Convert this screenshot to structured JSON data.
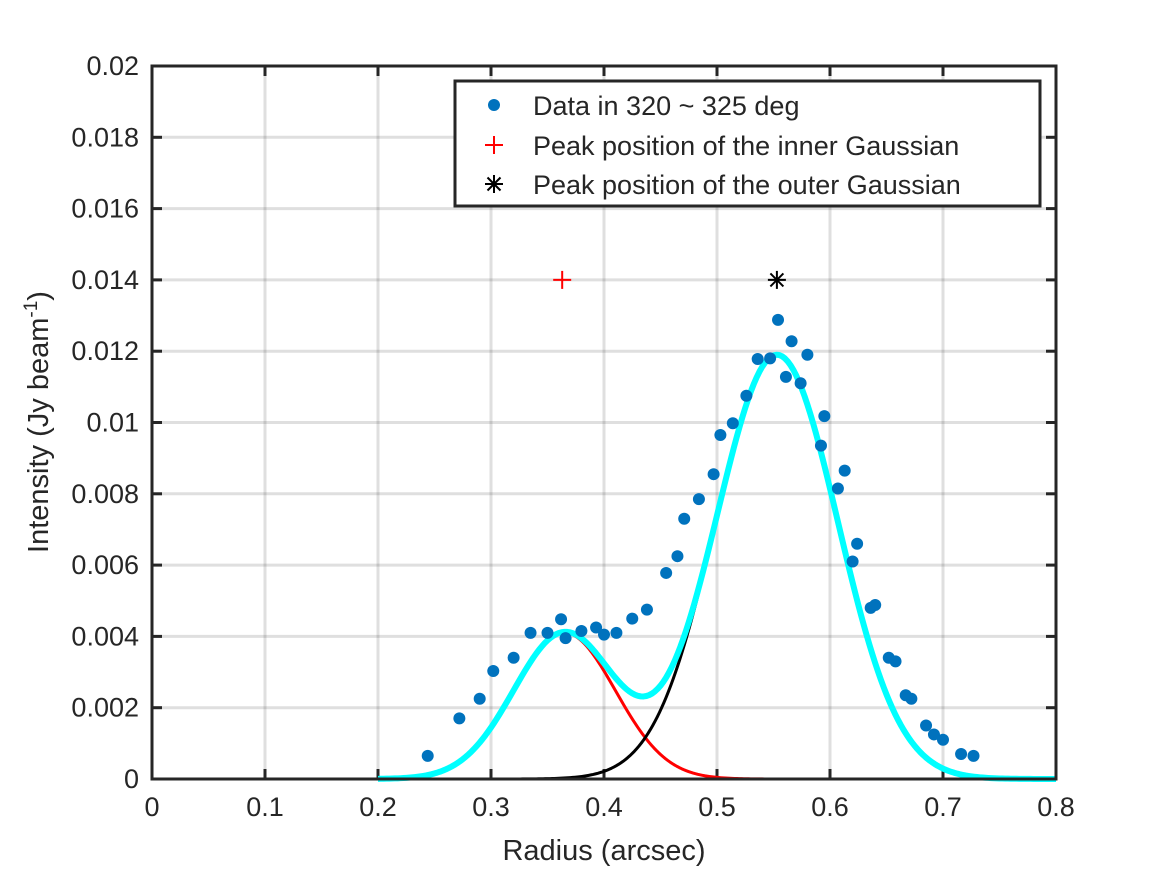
{
  "chart_data": {
    "type": "scatter",
    "title": "",
    "xlabel": "Radius (arcsec)",
    "ylabel": "Intensity (Jy beam",
    "ylabel_sup": "-1",
    "ylabel_close": ")",
    "xlim": [
      0,
      0.8
    ],
    "ylim": [
      0,
      0.02
    ],
    "grid": true,
    "legend_position": "top-right",
    "x_ticks": [
      0,
      0.1,
      0.2,
      0.3,
      0.4,
      0.5,
      0.6,
      0.7,
      0.8
    ],
    "x_tick_labels": [
      "0",
      "0.1",
      "0.2",
      "0.3",
      "0.4",
      "0.5",
      "0.6",
      "0.7",
      "0.8"
    ],
    "y_ticks": [
      0,
      0.002,
      0.004,
      0.006,
      0.008,
      0.01,
      0.012,
      0.014,
      0.016,
      0.018,
      0.02
    ],
    "y_tick_labels": [
      "0",
      "0.002",
      "0.004",
      "0.006",
      "0.008",
      "0.01",
      "0.012",
      "0.014",
      "0.016",
      "0.018",
      "0.02"
    ],
    "series": [
      {
        "name": "Data in 320 ~ 325 deg",
        "kind": "scatter",
        "color": "#0072BD",
        "points": [
          [
            0.244,
            0.00065
          ],
          [
            0.272,
            0.0017
          ],
          [
            0.29,
            0.00225
          ],
          [
            0.302,
            0.00303
          ],
          [
            0.32,
            0.0034
          ],
          [
            0.335,
            0.0041
          ],
          [
            0.35,
            0.0041
          ],
          [
            0.362,
            0.00448
          ],
          [
            0.366,
            0.00395
          ],
          [
            0.38,
            0.00415
          ],
          [
            0.393,
            0.00425
          ],
          [
            0.4,
            0.00405
          ],
          [
            0.411,
            0.0041
          ],
          [
            0.425,
            0.0045
          ],
          [
            0.438,
            0.00475
          ],
          [
            0.455,
            0.00578
          ],
          [
            0.465,
            0.00625
          ],
          [
            0.471,
            0.0073
          ],
          [
            0.484,
            0.00785
          ],
          [
            0.497,
            0.00855
          ],
          [
            0.503,
            0.00965
          ],
          [
            0.514,
            0.00998
          ],
          [
            0.526,
            0.01075
          ],
          [
            0.536,
            0.01178
          ],
          [
            0.547,
            0.0118
          ],
          [
            0.554,
            0.01288
          ],
          [
            0.561,
            0.01128
          ],
          [
            0.566,
            0.01228
          ],
          [
            0.574,
            0.0111
          ],
          [
            0.58,
            0.0119
          ],
          [
            0.592,
            0.00935
          ],
          [
            0.595,
            0.01018
          ],
          [
            0.607,
            0.00815
          ],
          [
            0.613,
            0.00865
          ],
          [
            0.62,
            0.0061
          ],
          [
            0.624,
            0.0066
          ],
          [
            0.636,
            0.0048
          ],
          [
            0.64,
            0.00488
          ],
          [
            0.652,
            0.0034
          ],
          [
            0.658,
            0.0033
          ],
          [
            0.667,
            0.00235
          ],
          [
            0.672,
            0.00225
          ],
          [
            0.685,
            0.0015
          ],
          [
            0.692,
            0.00125
          ],
          [
            0.7,
            0.0011
          ],
          [
            0.716,
            0.0007
          ],
          [
            0.727,
            0.00065
          ]
        ]
      },
      {
        "name": "Inner Gaussian",
        "kind": "gaussian",
        "color": "#FF0000",
        "amplitude": 0.0041,
        "mean": 0.365,
        "sigma": 0.045,
        "x_range": [
          0.24,
          0.73
        ]
      },
      {
        "name": "Outer Gaussian",
        "kind": "gaussian",
        "color": "#000000",
        "amplitude": 0.0119,
        "mean": 0.553,
        "sigma": 0.054,
        "x_range": [
          0.245,
          0.73
        ]
      },
      {
        "name": "Total fit",
        "kind": "gaussian_sum",
        "color": "#00FFFF",
        "components": [
          "Inner Gaussian",
          "Outer Gaussian"
        ],
        "x_range": [
          0.2,
          0.8
        ]
      },
      {
        "name": "Peak position of the inner Gaussian",
        "kind": "marker",
        "marker": "plus",
        "color": "#FF0000",
        "point": [
          0.363,
          0.014
        ]
      },
      {
        "name": "Peak position of the outer Gaussian",
        "kind": "marker",
        "marker": "asterisk",
        "color": "#000000",
        "point": [
          0.553,
          0.014
        ]
      }
    ],
    "legend": [
      {
        "label": "Data in 320 ~ 325 deg",
        "marker": "dot",
        "color": "#0072BD"
      },
      {
        "label": "Peak position of the inner Gaussian",
        "marker": "plus",
        "color": "#FF0000"
      },
      {
        "label": "Peak position of the outer Gaussian",
        "marker": "asterisk",
        "color": "#000000"
      }
    ]
  }
}
